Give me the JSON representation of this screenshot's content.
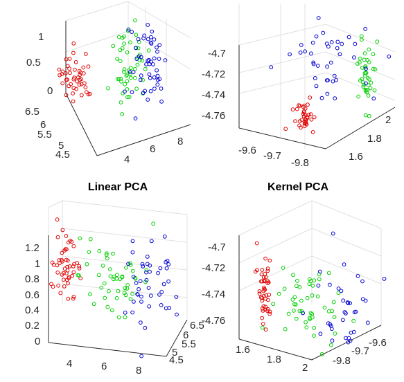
{
  "colors": {
    "red": "#e00000",
    "green": "#00d000",
    "blue": "#0000d0"
  },
  "chart_data": [
    {
      "type": "scatter",
      "title": "",
      "xticks": [
        "4",
        "6",
        "8"
      ],
      "yticks": [
        "4.5",
        "5",
        "5.5",
        "6",
        "6.5"
      ],
      "zticks": [
        "0",
        "0.5",
        "1"
      ],
      "grid": true
    },
    {
      "type": "scatter",
      "title": "",
      "xticks": [
        "-9.6",
        "-9.7",
        "-9.8"
      ],
      "yticks": [
        "1.6",
        "1.8",
        "2"
      ],
      "zticks": [
        "-4.7",
        "-4.72",
        "-4.74",
        "-4.76"
      ],
      "grid": true
    },
    {
      "type": "scatter",
      "title": "Linear PCA",
      "xticks": [
        "4",
        "6",
        "8"
      ],
      "yticks": [
        "4.5",
        "5",
        "5.5",
        "6",
        "6.5"
      ],
      "zticks": [
        "0",
        "0.2",
        "0.4",
        "0.6",
        "0.8",
        "1",
        "1.2"
      ],
      "grid": true
    },
    {
      "type": "scatter",
      "title": "Kernel PCA",
      "xticks": [
        "1.6",
        "1.8",
        "2"
      ],
      "yticks": [
        "-9.6",
        "-9.7",
        "-9.8"
      ],
      "zticks": [
        "-4.7",
        "-4.72",
        "-4.74",
        "-4.76"
      ],
      "grid": true
    }
  ]
}
